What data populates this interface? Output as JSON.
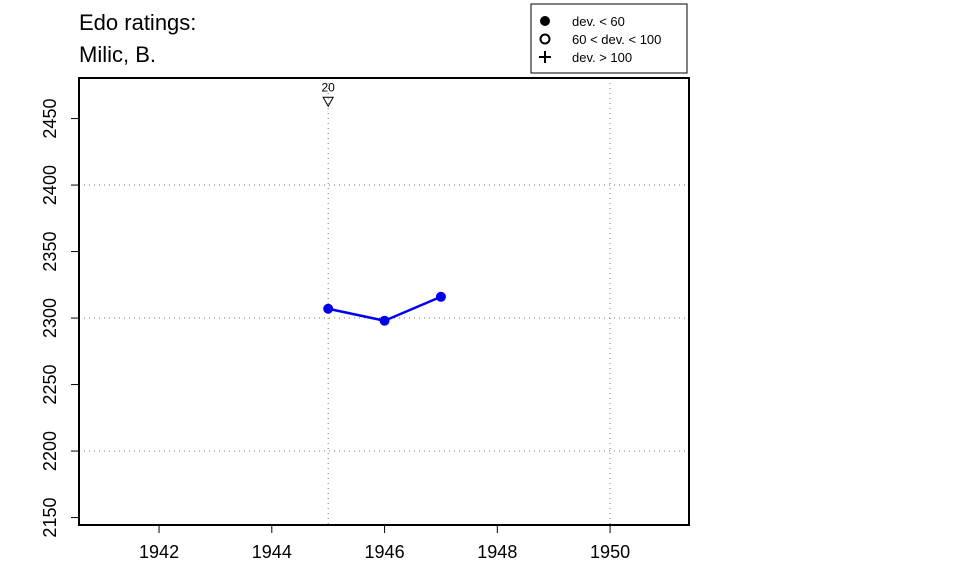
{
  "chart_data": {
    "type": "line",
    "title": "Edo ratings:",
    "subtitle": "Milic, B.",
    "x": [
      1945,
      1946,
      1947
    ],
    "values": [
      2307,
      2298,
      2316
    ],
    "color": "#0000ee",
    "xlim": [
      1940.58,
      1951.4
    ],
    "ylim": [
      2144.4,
      2480.5
    ],
    "xticks": [
      1942,
      1944,
      1946,
      1948,
      1950
    ],
    "yticks": [
      2150,
      2200,
      2250,
      2300,
      2350,
      2400,
      2450
    ],
    "xgrid": [
      1945,
      1950
    ],
    "ygrid": [
      2200,
      2300,
      2400
    ],
    "annotations": [
      {
        "x": 1945,
        "y": 2463,
        "label": "20",
        "symbol": "down-triangle"
      }
    ],
    "legend": [
      {
        "label": "dev. < 60",
        "symbol": "filled-circle"
      },
      {
        "label": "60 < dev. < 100",
        "symbol": "open-circle"
      },
      {
        "label": "dev. > 100",
        "symbol": "plus"
      }
    ]
  }
}
